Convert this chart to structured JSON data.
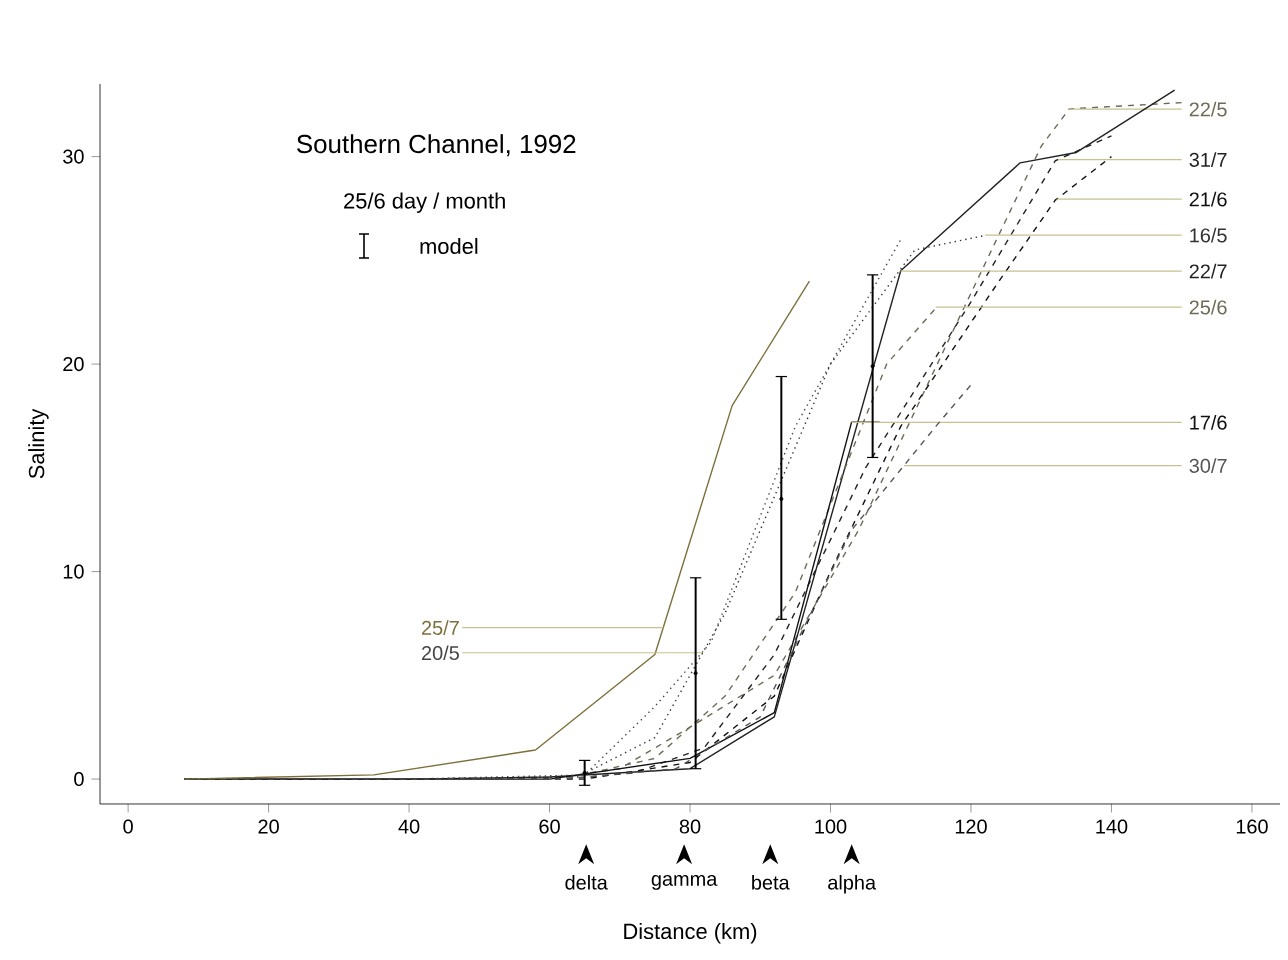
{
  "chart_data": {
    "type": "line",
    "title": "Southern Channel, 1992",
    "xlabel": "Distance (km)",
    "ylabel": "Salinity",
    "xlim": [
      -4,
      164
    ],
    "ylim": [
      -1.2,
      33.5
    ],
    "xticks": [
      0,
      20,
      40,
      60,
      80,
      100,
      120,
      140,
      160
    ],
    "yticks": [
      0,
      10,
      20,
      30
    ],
    "legend": "top left",
    "grid": false,
    "annotations": [
      "25/6 day / month",
      "delta",
      "gamma",
      "beta",
      "alpha"
    ],
    "series": [
      {
        "name": "22/5",
        "color": "#6e6a55",
        "line_style": "dashed",
        "x": [
          8,
          40,
          62,
          70,
          80,
          92,
          104,
          118,
          130,
          134,
          150
        ],
        "values": [
          0,
          0,
          0.1,
          0.5,
          2.5,
          5,
          12,
          22,
          30.5,
          32.3,
          32.6
        ]
      },
      {
        "name": "31/7",
        "color": "#222222",
        "line_style": "dashed",
        "x": [
          8,
          40,
          62,
          72,
          82,
          92,
          105,
          120,
          132,
          140
        ],
        "values": [
          0,
          0,
          0,
          0.3,
          1.5,
          6,
          15,
          23,
          29.8,
          31
        ]
      },
      {
        "name": "21/6",
        "color": "#111111",
        "line_style": "dashed",
        "x": [
          8,
          40,
          65,
          80,
          92,
          100,
          110,
          124,
          132,
          140
        ],
        "values": [
          0,
          0,
          0,
          0.8,
          4,
          10,
          17,
          24,
          27.9,
          30
        ]
      },
      {
        "name": "16/5",
        "color": "#333333",
        "line_style": "dotted",
        "x": [
          8,
          40,
          64,
          75,
          85,
          100,
          112,
          122
        ],
        "values": [
          0,
          0,
          0.1,
          2,
          8,
          20,
          25.5,
          26.2
        ]
      },
      {
        "name": "22/7",
        "color": "#222222",
        "line_style": "solid",
        "x": [
          8,
          40,
          60,
          80,
          92,
          110,
          127,
          135,
          149
        ],
        "values": [
          0,
          0,
          0.1,
          0.5,
          3,
          24.5,
          29.7,
          30.2,
          33.2
        ]
      },
      {
        "name": "25/6",
        "color": "#6e6a55",
        "line_style": "dashed",
        "x": [
          8,
          40,
          62,
          75,
          85,
          95,
          108,
          115
        ],
        "values": [
          0,
          0,
          0,
          1,
          4,
          9,
          20,
          22.7
        ]
      },
      {
        "name": "17/6",
        "color": "#111111",
        "line_style": "solid",
        "x": [
          8,
          40,
          60,
          80,
          92,
          103,
          107
        ],
        "values": [
          0,
          0,
          0,
          1,
          3.2,
          17.2,
          17.2
        ]
      },
      {
        "name": "30/7",
        "color": "#555555",
        "line_style": "dashed",
        "x": [
          8,
          40,
          62,
          78,
          90,
          103,
          115,
          120
        ],
        "values": [
          0,
          0,
          0,
          0.5,
          3,
          12,
          17,
          19
        ]
      },
      {
        "name": "25/7",
        "color": "#7d6f3a",
        "line_style": "solid",
        "x": [
          8,
          35,
          58,
          75,
          86,
          97
        ],
        "values": [
          0,
          0.2,
          1.4,
          6,
          18,
          24
        ]
      },
      {
        "name": "20/5",
        "color": "#444444",
        "line_style": "dotted",
        "x": [
          8,
          40,
          65,
          75,
          83,
          95,
          110
        ],
        "values": [
          0,
          0,
          0.2,
          3.5,
          6.6,
          17,
          26
        ]
      },
      {
        "name": "model",
        "type": "scatter",
        "marker": "diamond",
        "color": "#000000",
        "x": [
          65,
          80.8,
          93,
          106
        ],
        "values": [
          0.3,
          5.1,
          13.5,
          19.9
        ],
        "errors": [
          [
            -0.3,
            0.9
          ],
          [
            0.5,
            9.7
          ],
          [
            7.7,
            19.4
          ],
          [
            15.5,
            24.3
          ]
        ]
      }
    ]
  }
}
